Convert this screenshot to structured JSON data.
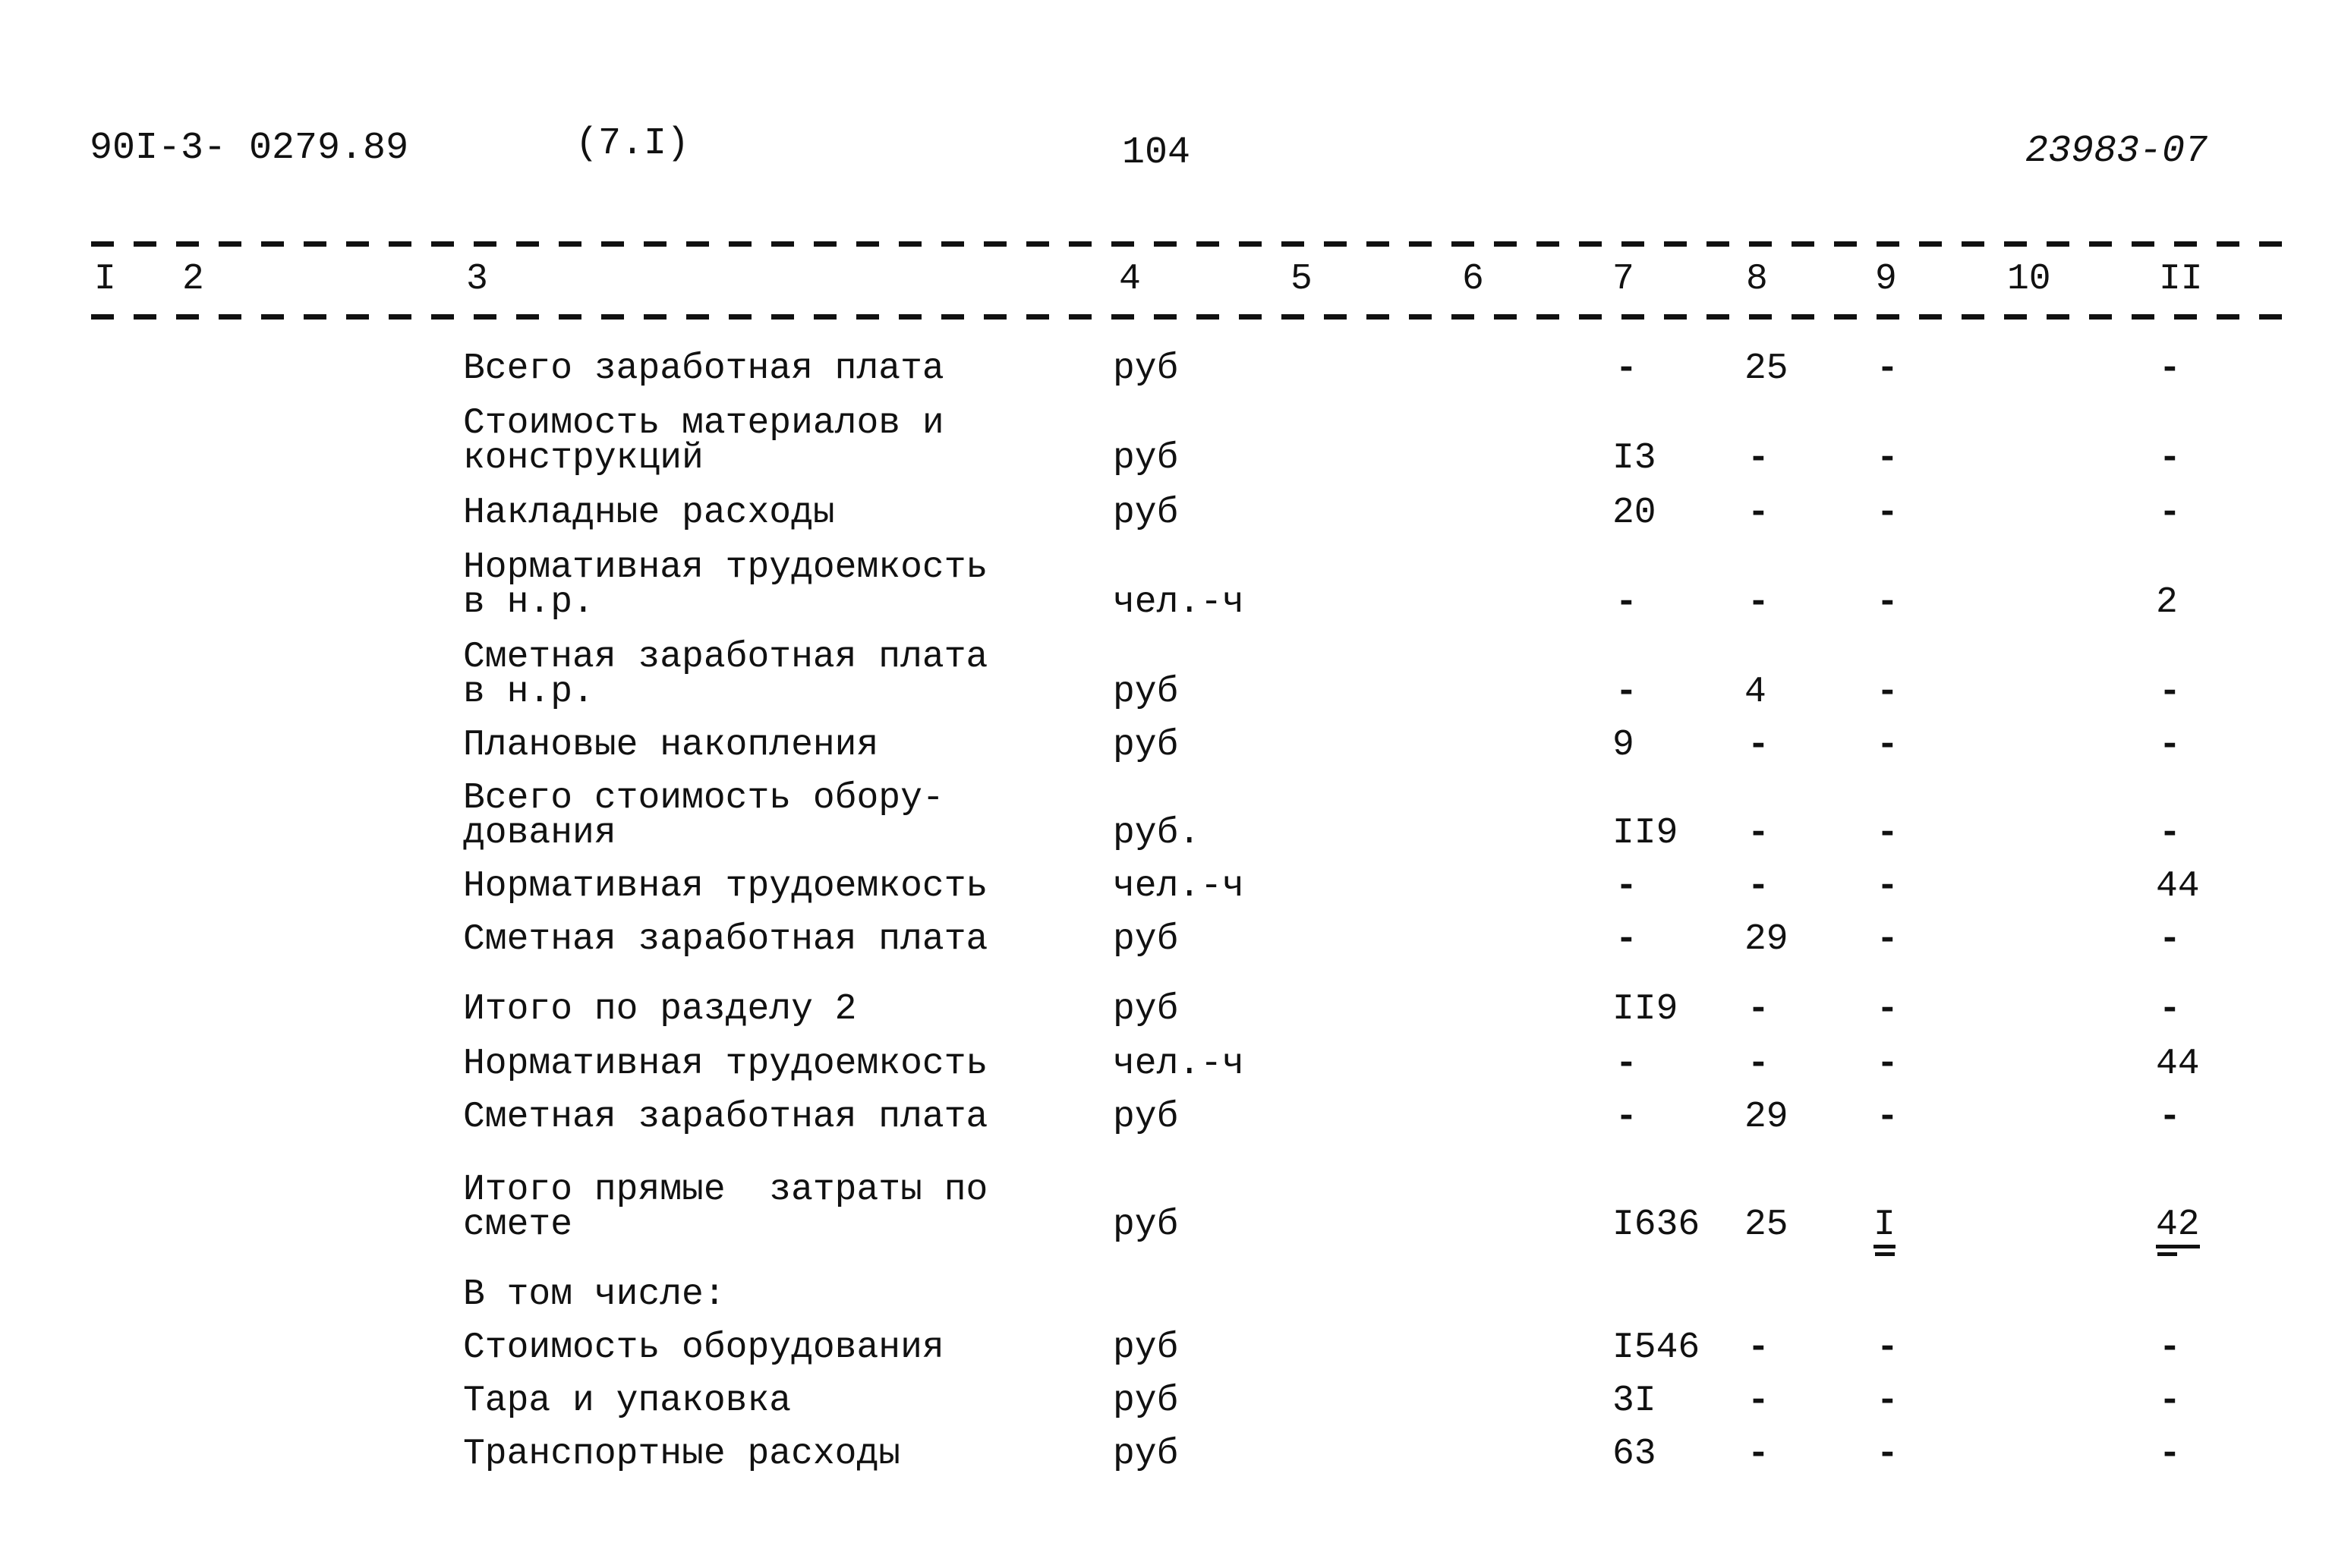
{
  "header": {
    "doc_code": "90I-3- 0279.89",
    "section": "(7.I)",
    "page_number": "104",
    "inventory_number": "23983-07"
  },
  "columns": [
    "I",
    "2",
    "3",
    "4",
    "5",
    "6",
    "7",
    "8",
    "9",
    "10",
    "II"
  ],
  "rows": [
    {
      "lines": [
        "Всего заработная плата"
      ],
      "unit": "руб",
      "c7": "-",
      "c8": "25",
      "c9": "-",
      "c11": "-"
    },
    {
      "lines": [
        "Стоимость материалов и",
        "конструкций"
      ],
      "unit": "руб",
      "c7": "I3",
      "c8": "-",
      "c9": "-",
      "c11": "-"
    },
    {
      "lines": [
        "Накладные расходы"
      ],
      "unit": "руб",
      "c7": "20",
      "c8": "-",
      "c9": "-",
      "c11": "-"
    },
    {
      "lines": [
        "Нормативная трудоемкость",
        "в н.р."
      ],
      "unit": "чел.-ч",
      "c7": "-",
      "c8": "-",
      "c9": "-",
      "c11": "2"
    },
    {
      "lines": [
        "Сметная заработная плата",
        "в н.р."
      ],
      "unit": "руб",
      "c7": "-",
      "c8": "4",
      "c9": "-",
      "c11": "-"
    },
    {
      "lines": [
        "Плановые накопления"
      ],
      "unit": "руб",
      "c7": "9",
      "c8": "-",
      "c9": "-",
      "c11": "-"
    },
    {
      "lines": [
        "Всего стоимость обору-",
        "дования"
      ],
      "unit": "руб.",
      "c7": "II9",
      "c8": "-",
      "c9": "-",
      "c11": "-"
    },
    {
      "lines": [
        "Нормативная трудоемкость"
      ],
      "unit": "чел.-ч",
      "c7": "-",
      "c8": "-",
      "c9": "-",
      "c11": "44"
    },
    {
      "lines": [
        "Сметная заработная плата"
      ],
      "unit": "руб",
      "c7": "-",
      "c8": "29",
      "c9": "-",
      "c11": "-"
    },
    {
      "lines": [
        "Итого по разделу 2"
      ],
      "unit": "руб",
      "c7": "II9",
      "c8": "-",
      "c9": "-",
      "c11": "-"
    },
    {
      "lines": [
        "Нормативная трудоемкость"
      ],
      "unit": "чел.-ч",
      "c7": "-",
      "c8": "-",
      "c9": "-",
      "c11": "44"
    },
    {
      "lines": [
        "Сметная заработная плата"
      ],
      "unit": "руб",
      "c7": "-",
      "c8": "29",
      "c9": "-",
      "c11": "-"
    },
    {
      "lines": [
        "Итого прямые  затраты по",
        "смете"
      ],
      "unit": "руб",
      "c7": "I636",
      "c8": "25",
      "c9": "I",
      "c11": "42",
      "underlined": true
    },
    {
      "lines": [
        "В том числе:"
      ],
      "unit": "",
      "c7": "",
      "c8": "",
      "c9": "",
      "c11": ""
    },
    {
      "lines": [
        "Стоимость оборудования"
      ],
      "unit": "руб",
      "c7": "I546",
      "c8": "-",
      "c9": "-",
      "c11": "-"
    },
    {
      "lines": [
        "Тара и упаковка"
      ],
      "unit": "руб",
      "c7": "3I",
      "c8": "-",
      "c9": "-",
      "c11": "-"
    },
    {
      "lines": [
        "Транспортные расходы"
      ],
      "unit": "руб",
      "c7": "63",
      "c8": "-",
      "c9": "-",
      "c11": "-"
    }
  ]
}
